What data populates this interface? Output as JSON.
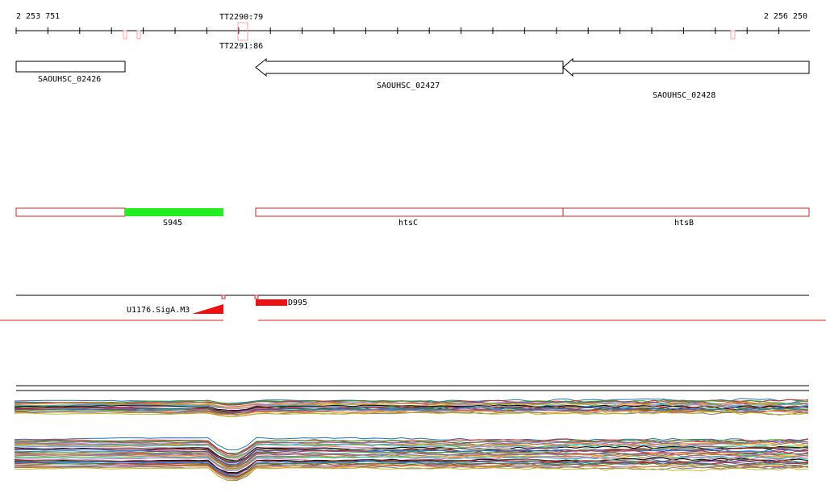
{
  "ruler": {
    "start": "2 253 751",
    "end": "2 256 250"
  },
  "terminators": [
    "TT2290:79",
    "TT2291:86"
  ],
  "genes": [
    "SAOUHSC_02426",
    "SAOUHSC_02427",
    "SAOUHSC_02428"
  ],
  "features": [
    "S945",
    "htsC",
    "htsB"
  ],
  "promoters": [
    "U1176.SigA.M3",
    "D995"
  ]
}
